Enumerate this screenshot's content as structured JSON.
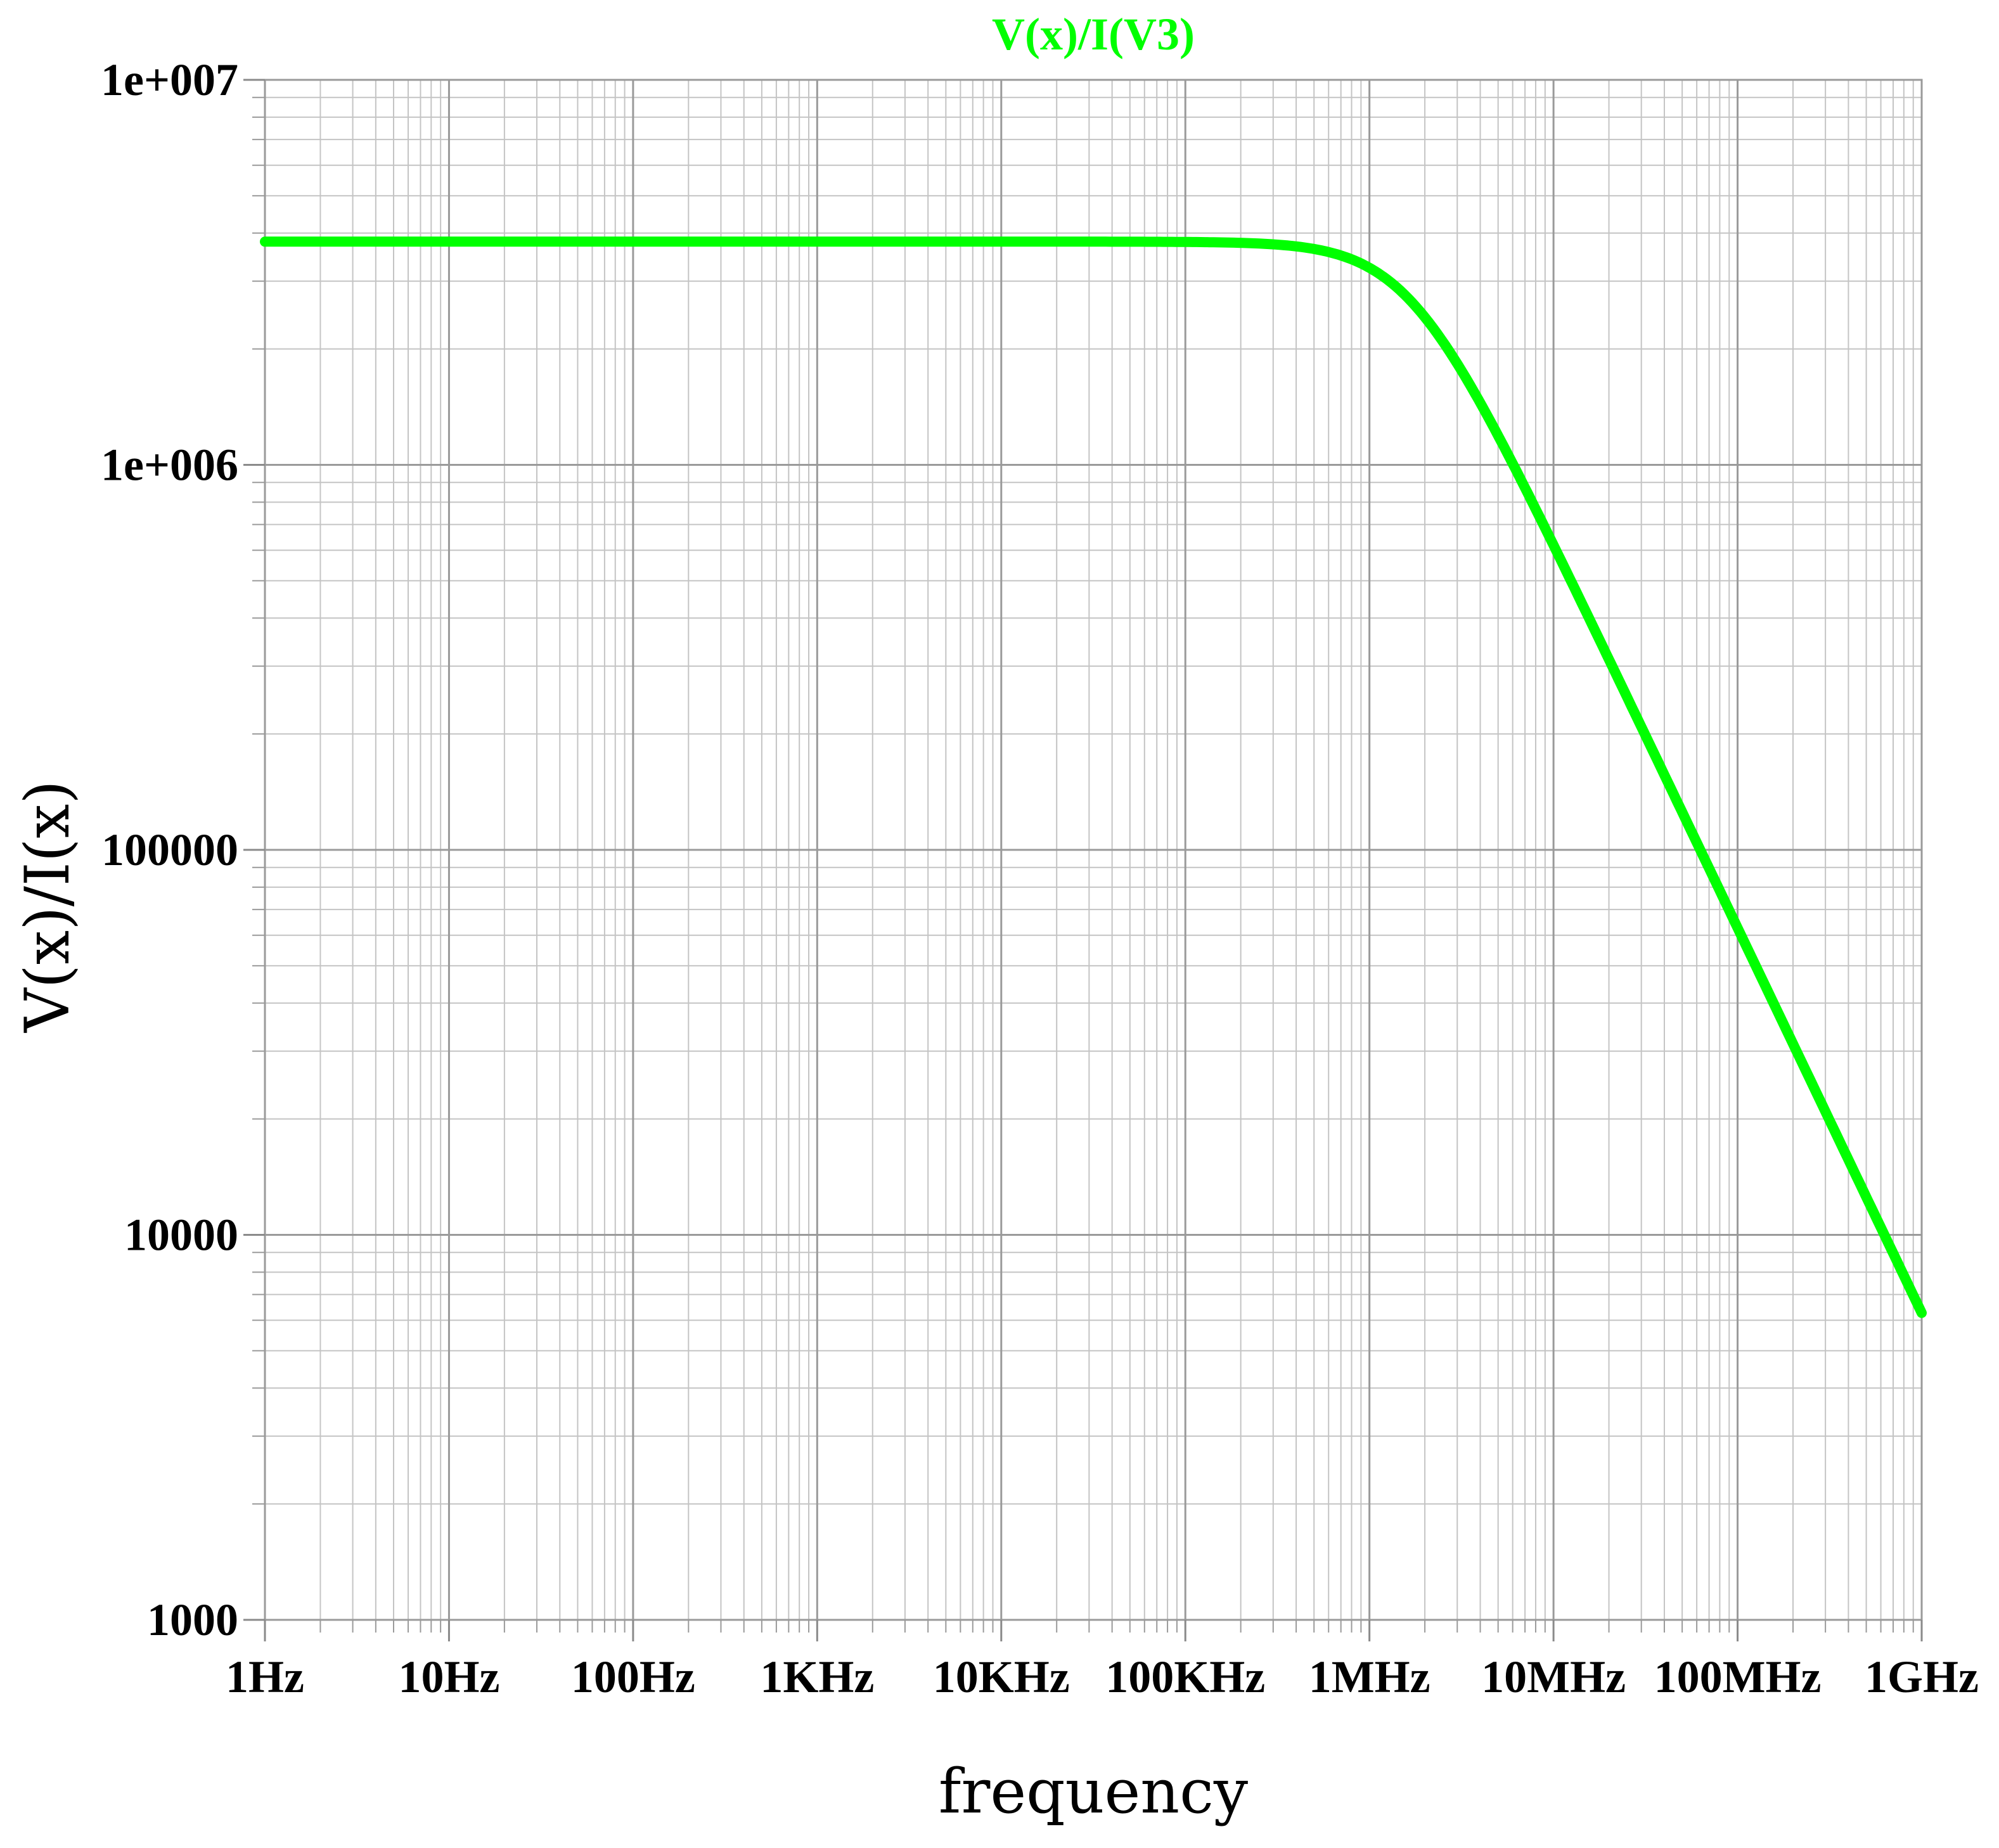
{
  "chart_data": {
    "type": "line",
    "title": "V(x)/I(V3)",
    "xlabel": "frequency",
    "ylabel": "V(x)/I(x)",
    "xscale": "log",
    "yscale": "log",
    "xlim": [
      1,
      1000000000
    ],
    "ylim": [
      1000,
      10000000
    ],
    "grid": true,
    "x_ticks": [
      {
        "value": 1,
        "label": "1Hz"
      },
      {
        "value": 10,
        "label": "10Hz"
      },
      {
        "value": 100,
        "label": "100Hz"
      },
      {
        "value": 1000,
        "label": "1KHz"
      },
      {
        "value": 10000,
        "label": "10KHz"
      },
      {
        "value": 100000,
        "label": "100KHz"
      },
      {
        "value": 1000000,
        "label": "1MHz"
      },
      {
        "value": 10000000,
        "label": "10MHz"
      },
      {
        "value": 100000000,
        "label": "100MHz"
      },
      {
        "value": 1000000000,
        "label": "1GHz"
      }
    ],
    "y_ticks": [
      {
        "value": 1000,
        "label": "1000"
      },
      {
        "value": 10000,
        "label": "10000"
      },
      {
        "value": 100000,
        "label": "100000"
      },
      {
        "value": 1000000,
        "label": "1e+006"
      },
      {
        "value": 10000000,
        "label": "1e+007"
      }
    ],
    "series": [
      {
        "name": "V(x)/I(V3)",
        "color": "#00ff00",
        "response": "first-order low-pass",
        "dc_value": 3800000,
        "corner_hz": 1650000,
        "x_range": [
          1,
          1000000000
        ]
      }
    ]
  }
}
